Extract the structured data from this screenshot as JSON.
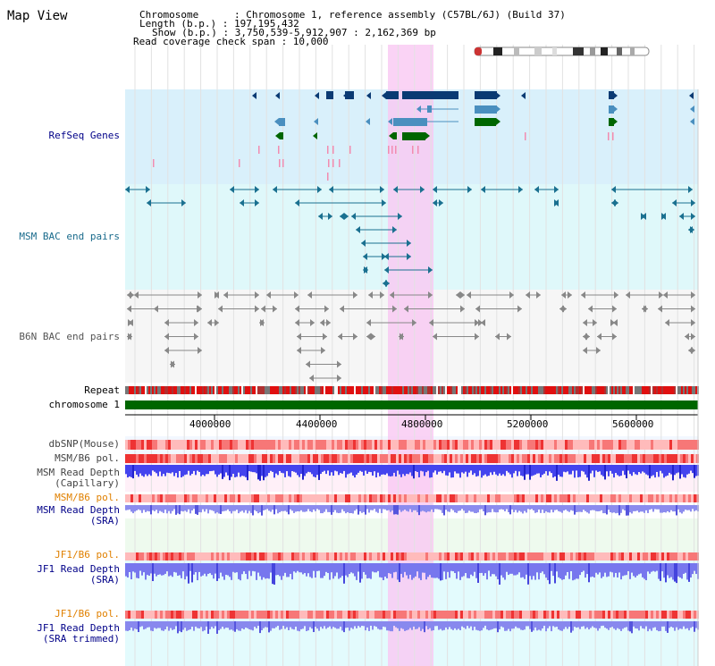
{
  "header": {
    "title": "Map View",
    "chromosome_line": "Chromosome      : Chromosome 1, reference assembly (C57BL/6J) (Build 37)",
    "length_line": "Length (b.p.) : 197,195,432",
    "show_line": "Show (b.p.) : 3,750,539-5,912,907 : 2,162,369 bp",
    "coverage_line": "Read coverage check span : 10,000"
  },
  "tracks": {
    "refseq": "RefSeq Genes",
    "msm_bac": "MSM BAC end pairs",
    "b6n_bac": "B6N BAC end pairs",
    "repeat": "Repeat",
    "chromosome": "chromosome 1",
    "dbsnp": "dbSNP(Mouse)",
    "msm_b6_pol_1": "MSM/B6 pol.",
    "msm_read_depth_cap_1": "MSM Read Depth",
    "msm_read_depth_cap_2": "(Capillary)",
    "msm_b6_pol_2": "MSM/B6 pol.",
    "msm_read_depth_sra_1": "MSM Read Depth",
    "msm_read_depth_sra_2": "(SRA)",
    "jf1_b6_pol_1": "JF1/B6 pol.",
    "jf1_read_depth_sra_1": "JF1 Read Depth",
    "jf1_read_depth_sra_2": "(SRA)",
    "jf1_b6_pol_2": "JF1/B6 pol.",
    "jf1_read_depth_trim_1": "JF1 Read Depth",
    "jf1_read_depth_trim_2": "(SRA trimmed)"
  },
  "axis": {
    "ticks": [
      "4000000",
      "4400000",
      "4800000",
      "5200000",
      "5600000"
    ]
  },
  "colors": {
    "highlight": "#f9d2f5",
    "refseq_bg": "#d9f0fb",
    "msm_bg": "#dff8fa",
    "b6n_bg": "#f5f5f5",
    "chromosome": "#006600",
    "gene_dark": "#0a3a73",
    "gene_mid": "#4a8fbf",
    "gene_green": "#006600",
    "gene_pink": "#f28cb0",
    "bac_teal": "#1a7090",
    "bac_gray": "#888888",
    "depth_blue": "#3333ee",
    "depth_light": "#8888ee"
  }
}
